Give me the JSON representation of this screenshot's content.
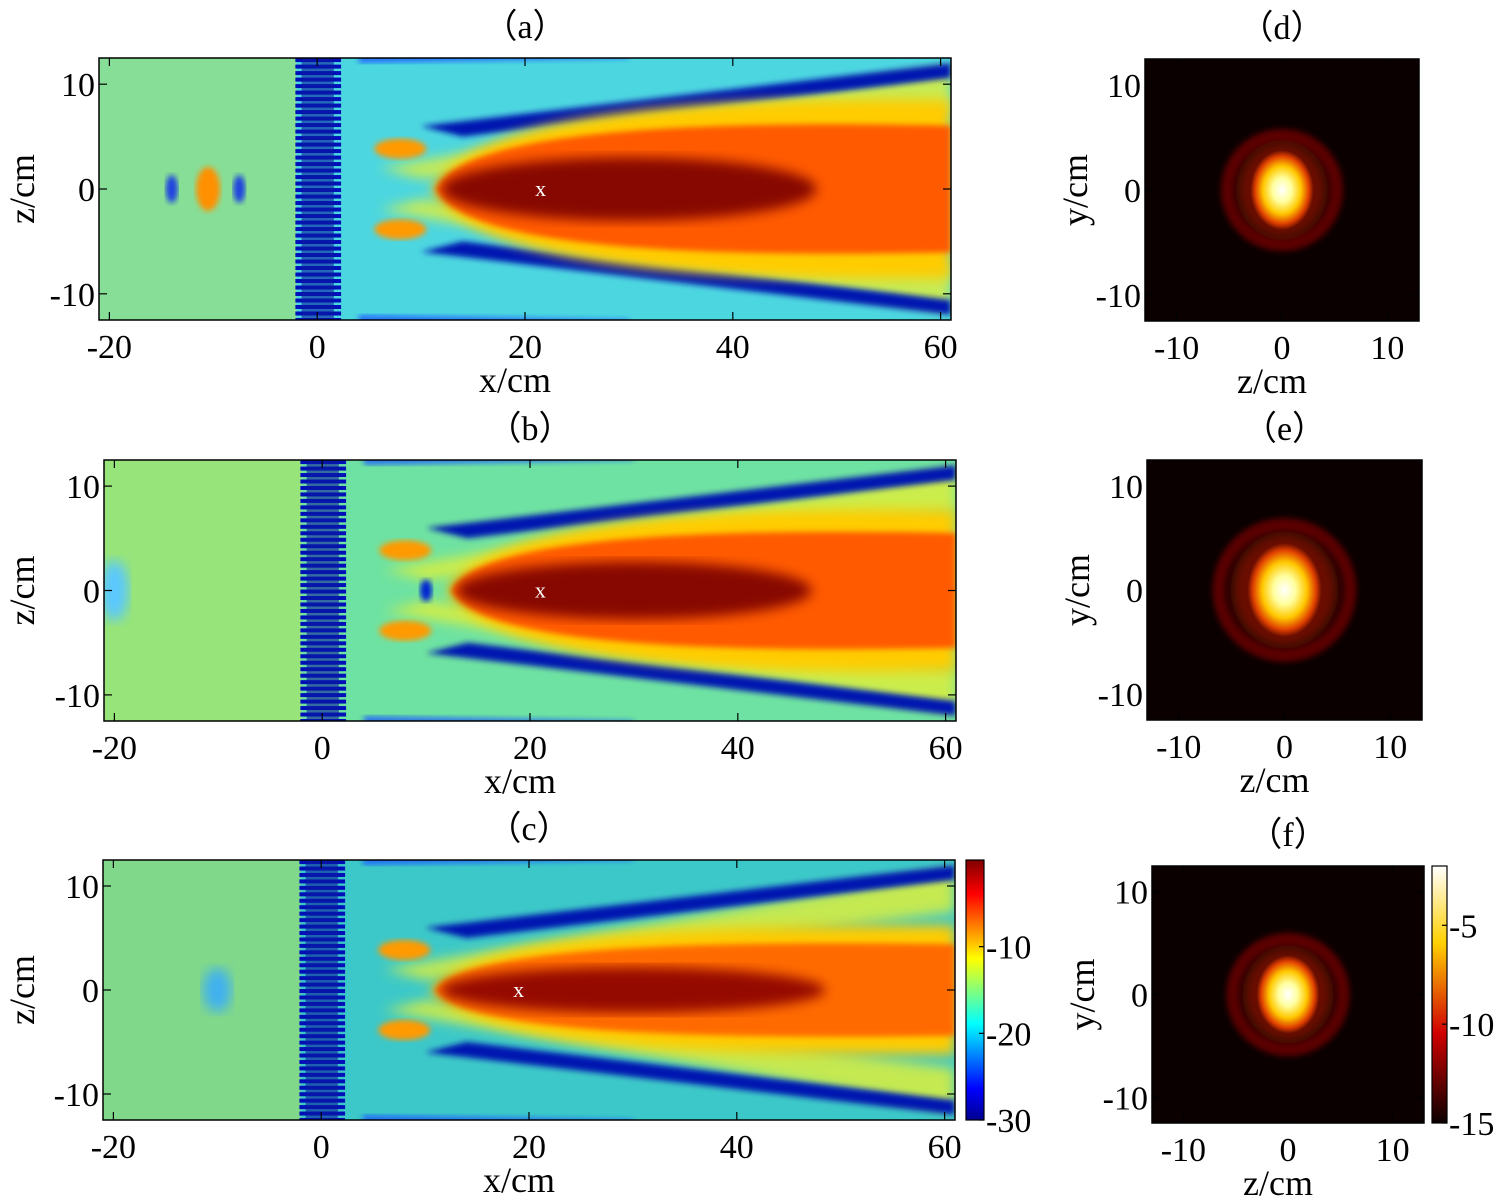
{
  "chart_data": [
    {
      "panel": "a",
      "type": "heatmap",
      "title": "（a）",
      "xlabel": "x/cm",
      "ylabel": "z/cm",
      "xlim": [
        -21,
        61
      ],
      "ylim": [
        -12.5,
        12.5
      ],
      "xticks": [
        -20,
        0,
        20,
        40,
        60
      ],
      "yticks": [
        10,
        0,
        -10
      ],
      "marker": {
        "label": "x",
        "x": 21.5,
        "z": 0
      },
      "colormap": "jet",
      "background_color": "#4cd6e0",
      "beam": {
        "start_x": 11,
        "width": 5.5,
        "peak": "#7a0000",
        "outer": "#ff5a00"
      }
    },
    {
      "panel": "b",
      "type": "heatmap",
      "title": "（b）",
      "xlabel": "x/cm",
      "ylabel": "z/cm",
      "xlim": [
        -21,
        61
      ],
      "ylim": [
        -12.5,
        12.5
      ],
      "xticks": [
        -20,
        0,
        20,
        40,
        60
      ],
      "yticks": [
        10,
        0,
        -10
      ],
      "marker": {
        "label": "x",
        "x": 21,
        "z": 0
      },
      "colormap": "jet",
      "background_color": "#6ee2a2",
      "beam": {
        "start_x": 12,
        "width": 5,
        "peak": "#7a0000",
        "outer": "#ff5a00"
      }
    },
    {
      "panel": "c",
      "type": "heatmap",
      "title": "（c）",
      "xlabel": "x/cm",
      "ylabel": "z/cm",
      "xlim": [
        -21,
        61
      ],
      "ylim": [
        -12.5,
        12.5
      ],
      "xticks": [
        -20,
        0,
        20,
        40,
        60
      ],
      "yticks": [
        10,
        0,
        -10
      ],
      "marker": {
        "label": "x",
        "x": 19,
        "z": 0
      },
      "colormap": "jet",
      "background_color": "#3cc8c8",
      "beam": {
        "start_x": 10.5,
        "width": 4,
        "peak": "#8a0000",
        "outer": "#ff6a00"
      },
      "colorbar": {
        "ticks": [
          -10,
          -20,
          -30
        ],
        "range": [
          -30,
          0
        ]
      }
    },
    {
      "panel": "d",
      "type": "heatmap",
      "title": "（d）",
      "xlabel": "z/cm",
      "ylabel": "y/cm",
      "xlim": [
        -13,
        13
      ],
      "ylim": [
        -12.5,
        12.5
      ],
      "xticks": [
        -10,
        0,
        10
      ],
      "yticks": [
        10,
        0,
        -10
      ],
      "colormap": "hot",
      "spot": {
        "rx": 3.0,
        "ry": 3.8,
        "ring_radius": 5.2
      }
    },
    {
      "panel": "e",
      "type": "heatmap",
      "title": "（e）",
      "xlabel": "z/cm",
      "ylabel": "y/cm",
      "xlim": [
        -13,
        13
      ],
      "ylim": [
        -12.5,
        12.5
      ],
      "xticks": [
        -10,
        0,
        10
      ],
      "yticks": [
        10,
        0,
        -10
      ],
      "colormap": "hot",
      "spot": {
        "rx": 3.5,
        "ry": 4.5,
        "ring_radius": 6.2
      }
    },
    {
      "panel": "f",
      "type": "heatmap",
      "title": "（f）",
      "xlabel": "z/cm",
      "ylabel": "y/cm",
      "xlim": [
        -13,
        13
      ],
      "ylim": [
        -12.5,
        12.5
      ],
      "xticks": [
        -10,
        0,
        10
      ],
      "yticks": [
        10,
        0,
        -10
      ],
      "colormap": "hot",
      "spot": {
        "rx": 3.0,
        "ry": 3.8,
        "ring_radius": 5.3
      },
      "colorbar": {
        "ticks": [
          -5,
          -10,
          -15
        ],
        "range": [
          -15,
          -2
        ]
      }
    }
  ]
}
